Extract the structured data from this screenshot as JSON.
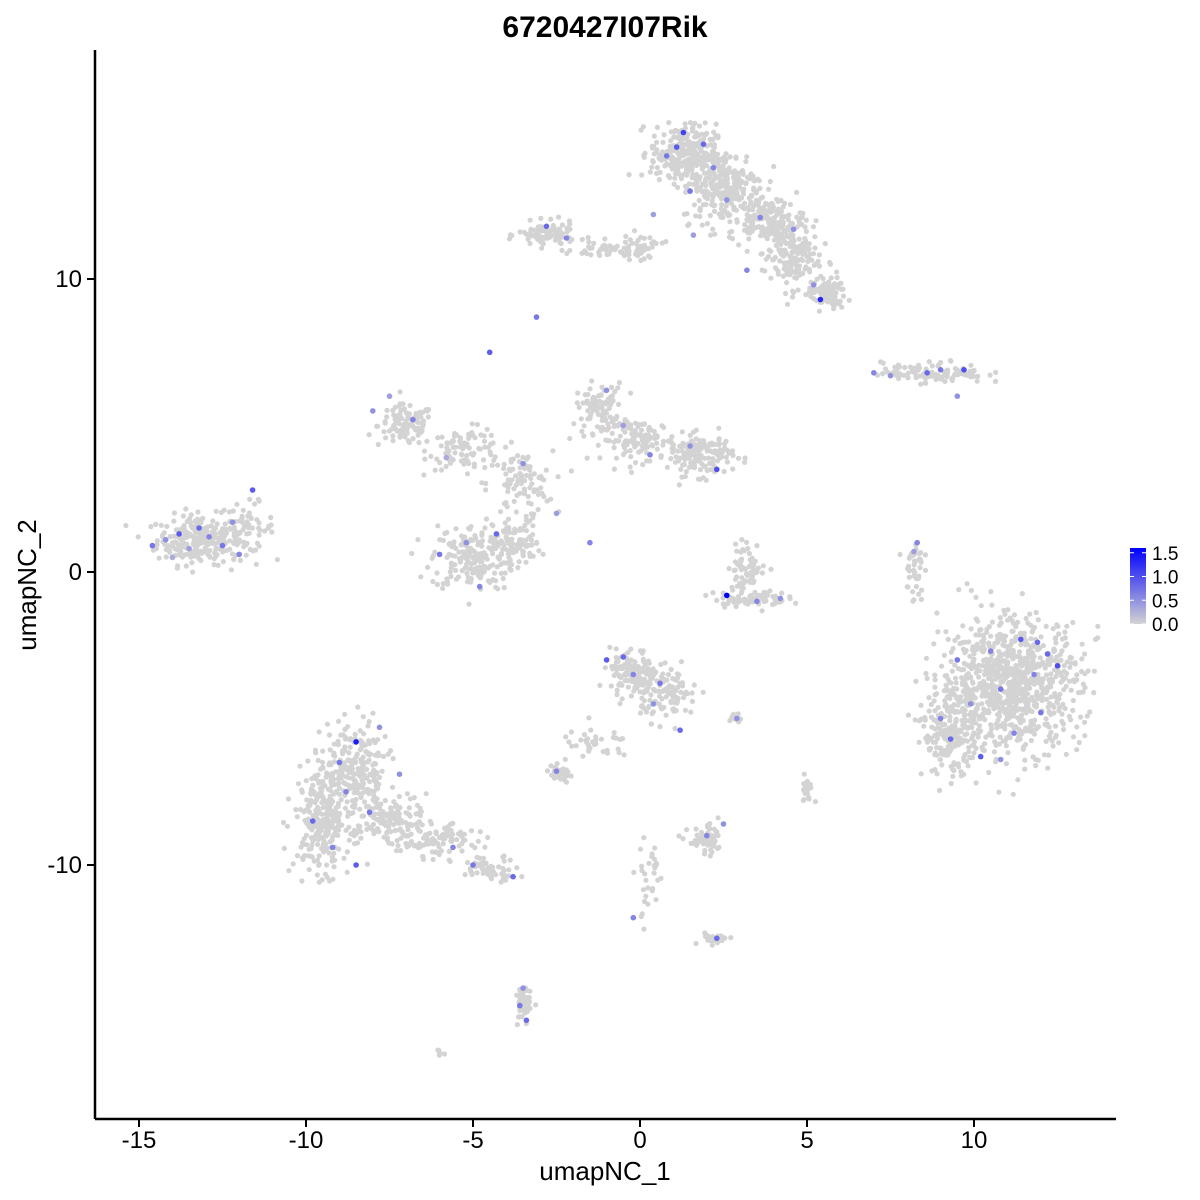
{
  "chart_data": {
    "type": "scatter",
    "title": "6720427I07Rik",
    "xlabel": "umapNC_1",
    "ylabel": "umapNC_2",
    "xlim": [
      -16.5,
      14.5
    ],
    "ylim": [
      -18.5,
      17.5
    ],
    "x_ticks": [
      -15,
      -10,
      -5,
      0,
      5,
      10
    ],
    "x_tick_labels": [
      "-15",
      "-10",
      "-5",
      "0",
      "5",
      "10"
    ],
    "y_ticks": [
      -10,
      0,
      10
    ],
    "y_tick_labels": [
      "-10",
      "0",
      "10"
    ],
    "grid": false,
    "legend": {
      "position": "right",
      "title": "",
      "breaks": [
        0.0,
        0.5,
        1.0,
        1.5
      ],
      "labels": [
        "0.0",
        "0.5",
        "1.0",
        "1.5"
      ],
      "range": [
        0,
        1.6
      ]
    },
    "colors": {
      "low": "#d3d3d3",
      "high": "#0000ff"
    },
    "series": [
      {
        "values": [
          [
            -14.6,
            0.9,
            0.7
          ],
          [
            -14.2,
            1.1,
            0.5
          ],
          [
            -13.8,
            1.3,
            0.9
          ],
          [
            -13.5,
            0.8,
            0.4
          ],
          [
            -13.2,
            1.5,
            0.8
          ],
          [
            -12.9,
            1.2,
            0.6
          ],
          [
            -12.5,
            0.9,
            0.7
          ],
          [
            -12.2,
            1.7,
            0.5
          ],
          [
            -11.6,
            2.8,
            0.9
          ],
          [
            -14.0,
            0.5,
            0.3
          ],
          [
            -12.0,
            0.6,
            0.6
          ],
          [
            -8.0,
            5.5,
            0.5
          ],
          [
            -7.5,
            6.0,
            0.4
          ],
          [
            -6.8,
            5.2,
            0.6
          ],
          [
            -5.8,
            3.9,
            0.3
          ],
          [
            -6.0,
            0.6,
            0.7
          ],
          [
            -5.2,
            1.0,
            0.5
          ],
          [
            -4.8,
            -0.5,
            0.6
          ],
          [
            -4.3,
            1.3,
            0.8
          ],
          [
            -3.5,
            3.7,
            0.5
          ],
          [
            -2.5,
            2.0,
            0.4
          ],
          [
            -1.5,
            1.0,
            0.6
          ],
          [
            -1.0,
            6.2,
            0.5
          ],
          [
            -0.5,
            5.0,
            0.4
          ],
          [
            0.3,
            4.0,
            0.6
          ],
          [
            1.5,
            4.3,
            0.5
          ],
          [
            2.3,
            3.5,
            1.0
          ],
          [
            -2.8,
            11.8,
            0.8
          ],
          [
            -2.2,
            11.4,
            0.6
          ],
          [
            -3.1,
            8.7,
            0.7
          ],
          [
            -4.5,
            7.5,
            0.9
          ],
          [
            1.3,
            15.0,
            1.1
          ],
          [
            1.1,
            14.5,
            0.9
          ],
          [
            0.8,
            14.2,
            0.7
          ],
          [
            1.9,
            14.6,
            0.8
          ],
          [
            2.2,
            13.8,
            0.6
          ],
          [
            1.5,
            13.0,
            0.7
          ],
          [
            2.6,
            12.7,
            0.5
          ],
          [
            3.6,
            12.1,
            0.6
          ],
          [
            4.6,
            11.7,
            0.5
          ],
          [
            0.4,
            12.2,
            0.4
          ],
          [
            3.2,
            10.3,
            0.6
          ],
          [
            5.4,
            9.3,
            1.3
          ],
          [
            5.2,
            9.8,
            0.5
          ],
          [
            1.6,
            11.5,
            0.4
          ],
          [
            7.0,
            6.8,
            0.6
          ],
          [
            7.5,
            6.7,
            0.5
          ],
          [
            9.0,
            6.9,
            0.7
          ],
          [
            9.7,
            6.9,
            1.0
          ],
          [
            8.6,
            6.8,
            0.8
          ],
          [
            9.5,
            6.0,
            0.5
          ],
          [
            8.3,
            1.0,
            0.6
          ],
          [
            8.2,
            0.7,
            0.4
          ],
          [
            2.6,
            -0.8,
            1.6
          ],
          [
            3.5,
            -1.0,
            0.6
          ],
          [
            4.2,
            -0.9,
            0.5
          ],
          [
            -1.0,
            -3.0,
            0.9
          ],
          [
            -0.5,
            -2.9,
            0.8
          ],
          [
            -0.2,
            -3.5,
            0.6
          ],
          [
            0.6,
            -3.8,
            0.7
          ],
          [
            0.4,
            -4.5,
            0.5
          ],
          [
            1.2,
            -5.4,
            0.8
          ],
          [
            2.9,
            -5.0,
            0.5
          ],
          [
            -2.5,
            -6.8,
            0.6
          ],
          [
            -8.5,
            -5.8,
            1.4
          ],
          [
            -9.0,
            -6.5,
            0.7
          ],
          [
            -8.8,
            -7.5,
            0.6
          ],
          [
            -9.8,
            -8.5,
            0.8
          ],
          [
            -9.2,
            -9.4,
            0.6
          ],
          [
            -8.1,
            -8.2,
            0.7
          ],
          [
            -7.2,
            -6.9,
            0.5
          ],
          [
            -8.5,
            -10.0,
            0.9
          ],
          [
            -5.6,
            -9.4,
            0.6
          ],
          [
            -5.0,
            -10.0,
            0.7
          ],
          [
            -3.8,
            -10.4,
            0.8
          ],
          [
            -7.8,
            -5.3,
            0.5
          ],
          [
            9.5,
            -3.0,
            0.7
          ],
          [
            10.5,
            -2.7,
            0.6
          ],
          [
            11.4,
            -2.3,
            0.9
          ],
          [
            12.2,
            -2.8,
            0.8
          ],
          [
            11.8,
            -3.5,
            0.6
          ],
          [
            10.8,
            -4.0,
            0.7
          ],
          [
            9.9,
            -4.5,
            0.5
          ],
          [
            9.3,
            -5.7,
            0.8
          ],
          [
            10.2,
            -6.3,
            0.9
          ],
          [
            11.2,
            -5.5,
            0.6
          ],
          [
            12.0,
            -4.8,
            0.7
          ],
          [
            12.5,
            -3.2,
            1.0
          ],
          [
            10.8,
            -6.4,
            0.5
          ],
          [
            9.0,
            -5.0,
            0.6
          ],
          [
            11.9,
            -2.4,
            0.8
          ],
          [
            2.0,
            -9.0,
            0.6
          ],
          [
            2.5,
            -8.6,
            0.5
          ],
          [
            2.3,
            -12.5,
            0.8
          ],
          [
            -0.2,
            -11.8,
            0.6
          ],
          [
            -3.6,
            -14.8,
            0.7
          ],
          [
            -3.4,
            -15.3,
            0.8
          ],
          [
            -3.5,
            -14.2,
            0.5
          ]
        ]
      }
    ]
  }
}
